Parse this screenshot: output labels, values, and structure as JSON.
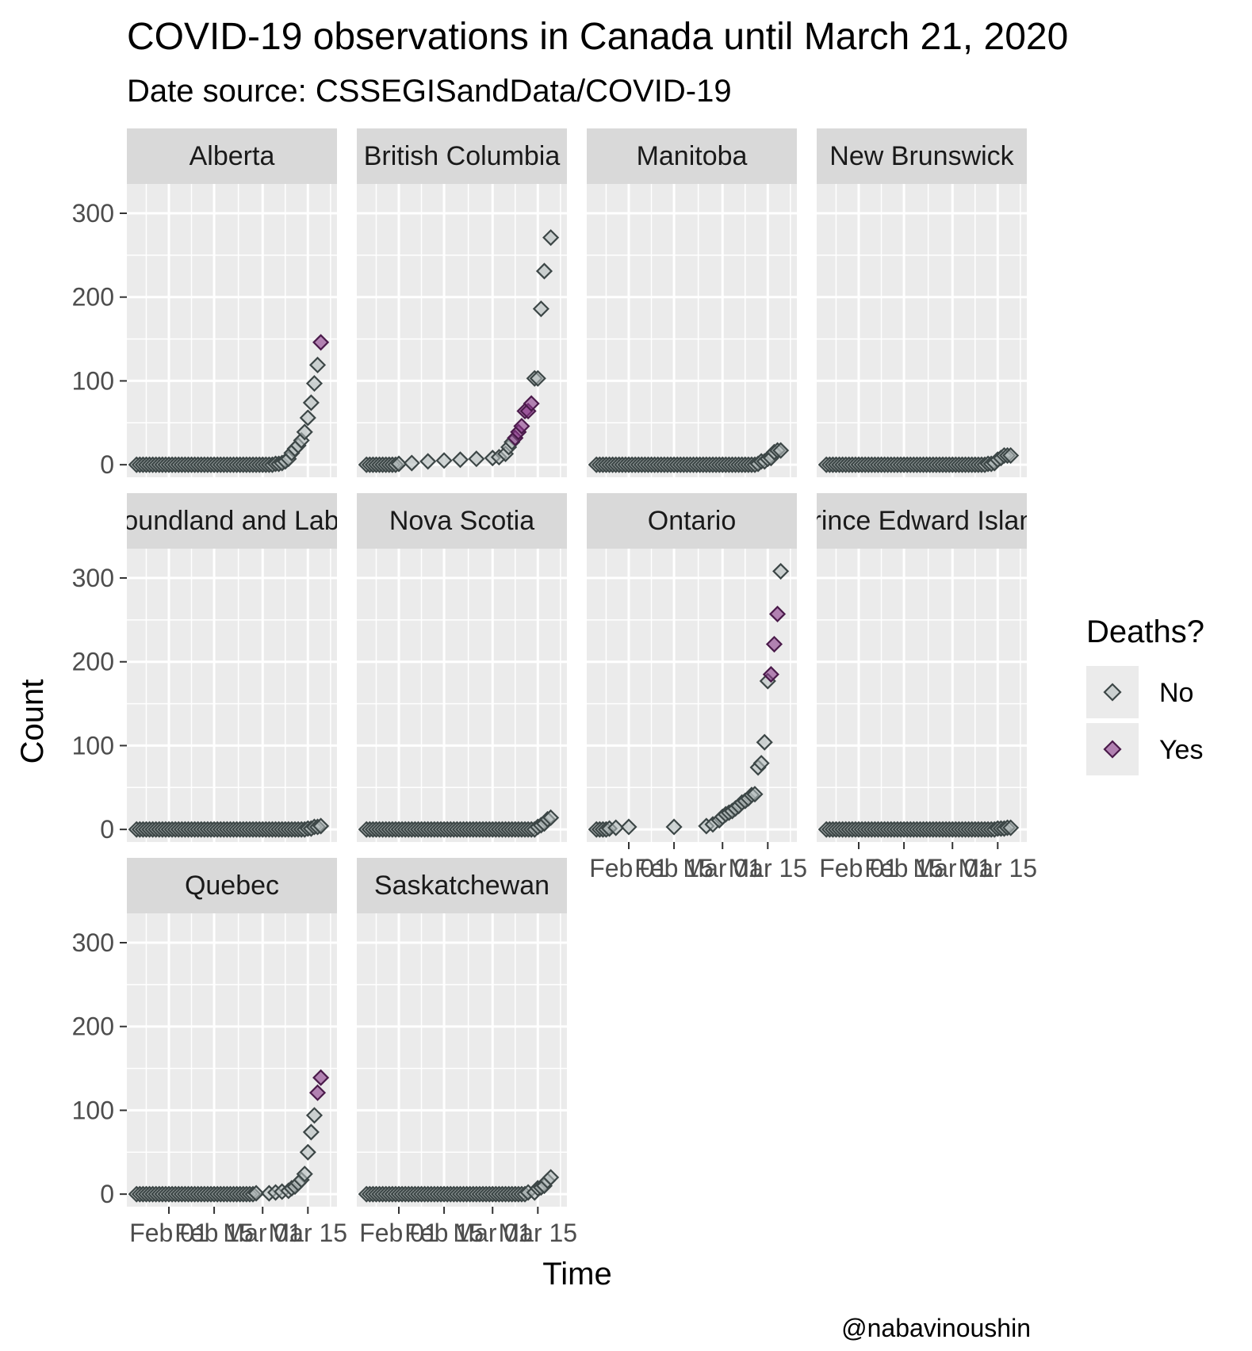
{
  "chart_data": {
    "type": "scatter",
    "title": "COVID-19 observations in Canada until March 21, 2020",
    "subtitle": "Date source: CSSEGISandData/COVID-19",
    "xlabel": "Time",
    "ylabel": "Count",
    "caption": "@nabavinoushin",
    "ylim": [
      -15,
      335
    ],
    "xlim": [
      "2020-01-19",
      "2020-03-24"
    ],
    "y_ticks": [
      0,
      100,
      200,
      300
    ],
    "x_ticks": [
      {
        "date": "2020-02-01",
        "label": "Feb 01"
      },
      {
        "date": "2020-02-15",
        "label": "Feb 15"
      },
      {
        "date": "2020-03-01",
        "label": "Mar 01"
      },
      {
        "date": "2020-03-15",
        "label": "Mar 15"
      }
    ],
    "grid": true,
    "legend": {
      "title": "Deaths?",
      "position": "right",
      "entries": [
        {
          "label": "No",
          "color": "#b4bcbc"
        },
        {
          "label": "Yes",
          "color": "#8b3a8b"
        }
      ]
    },
    "facets": [
      {
        "label": "Alberta",
        "points": [
          {
            "x": "2020-03-05",
            "y": 1,
            "death": "No"
          },
          {
            "x": "2020-03-06",
            "y": 1,
            "death": "No"
          },
          {
            "x": "2020-03-07",
            "y": 2,
            "death": "No"
          },
          {
            "x": "2020-03-08",
            "y": 4,
            "death": "No"
          },
          {
            "x": "2020-03-09",
            "y": 7,
            "death": "No"
          },
          {
            "x": "2020-03-10",
            "y": 14,
            "death": "No"
          },
          {
            "x": "2020-03-11",
            "y": 19,
            "death": "No"
          },
          {
            "x": "2020-03-12",
            "y": 23,
            "death": "No"
          },
          {
            "x": "2020-03-13",
            "y": 29,
            "death": "No"
          },
          {
            "x": "2020-03-14",
            "y": 39,
            "death": "No"
          },
          {
            "x": "2020-03-15",
            "y": 56,
            "death": "No"
          },
          {
            "x": "2020-03-16",
            "y": 74,
            "death": "No"
          },
          {
            "x": "2020-03-17",
            "y": 97,
            "death": "No"
          },
          {
            "x": "2020-03-18",
            "y": 119,
            "death": "No"
          },
          {
            "x": "2020-03-19",
            "y": 146,
            "death": "Yes"
          }
        ]
      },
      {
        "label": "British Columbia",
        "points": [
          {
            "x": "2020-02-01",
            "y": 1,
            "death": "No"
          },
          {
            "x": "2020-02-05",
            "y": 2,
            "death": "No"
          },
          {
            "x": "2020-02-10",
            "y": 4,
            "death": "No"
          },
          {
            "x": "2020-02-15",
            "y": 5,
            "death": "No"
          },
          {
            "x": "2020-02-20",
            "y": 6,
            "death": "No"
          },
          {
            "x": "2020-02-25",
            "y": 7,
            "death": "No"
          },
          {
            "x": "2020-03-01",
            "y": 8,
            "death": "No"
          },
          {
            "x": "2020-03-03",
            "y": 9,
            "death": "No"
          },
          {
            "x": "2020-03-05",
            "y": 13,
            "death": "No"
          },
          {
            "x": "2020-03-06",
            "y": 21,
            "death": "No"
          },
          {
            "x": "2020-03-07",
            "y": 27,
            "death": "No"
          },
          {
            "x": "2020-03-08",
            "y": 32,
            "death": "Yes"
          },
          {
            "x": "2020-03-09",
            "y": 39,
            "death": "Yes"
          },
          {
            "x": "2020-03-10",
            "y": 46,
            "death": "Yes"
          },
          {
            "x": "2020-03-11",
            "y": 64,
            "death": "Yes"
          },
          {
            "x": "2020-03-12",
            "y": 64,
            "death": "Yes"
          },
          {
            "x": "2020-03-13",
            "y": 73,
            "death": "Yes"
          },
          {
            "x": "2020-03-14",
            "y": 103,
            "death": "No"
          },
          {
            "x": "2020-03-15",
            "y": 103,
            "death": "No"
          },
          {
            "x": "2020-03-16",
            "y": 186,
            "death": "No"
          },
          {
            "x": "2020-03-17",
            "y": 231,
            "death": "No"
          },
          {
            "x": "2020-03-19",
            "y": 271,
            "death": "No"
          }
        ]
      },
      {
        "label": "Manitoba",
        "points": [
          {
            "x": "2020-03-12",
            "y": 1,
            "death": "No"
          },
          {
            "x": "2020-03-13",
            "y": 4,
            "death": "No"
          },
          {
            "x": "2020-03-14",
            "y": 4,
            "death": "No"
          },
          {
            "x": "2020-03-15",
            "y": 7,
            "death": "No"
          },
          {
            "x": "2020-03-16",
            "y": 8,
            "death": "No"
          },
          {
            "x": "2020-03-17",
            "y": 15,
            "death": "No"
          },
          {
            "x": "2020-03-18",
            "y": 17,
            "death": "No"
          },
          {
            "x": "2020-03-19",
            "y": 17,
            "death": "No"
          }
        ]
      },
      {
        "label": "New Brunswick",
        "points": [
          {
            "x": "2020-03-12",
            "y": 1,
            "death": "No"
          },
          {
            "x": "2020-03-13",
            "y": 1,
            "death": "No"
          },
          {
            "x": "2020-03-14",
            "y": 2,
            "death": "No"
          },
          {
            "x": "2020-03-15",
            "y": 6,
            "death": "No"
          },
          {
            "x": "2020-03-16",
            "y": 8,
            "death": "No"
          },
          {
            "x": "2020-03-17",
            "y": 11,
            "death": "No"
          },
          {
            "x": "2020-03-18",
            "y": 11,
            "death": "No"
          },
          {
            "x": "2020-03-19",
            "y": 11,
            "death": "No"
          }
        ]
      },
      {
        "label": "Newfoundland and Labrador",
        "points": [
          {
            "x": "2020-03-15",
            "y": 1,
            "death": "No"
          },
          {
            "x": "2020-03-16",
            "y": 1,
            "death": "No"
          },
          {
            "x": "2020-03-17",
            "y": 3,
            "death": "No"
          },
          {
            "x": "2020-03-18",
            "y": 3,
            "death": "No"
          },
          {
            "x": "2020-03-19",
            "y": 4,
            "death": "No"
          }
        ]
      },
      {
        "label": "Nova Scotia",
        "points": [
          {
            "x": "2020-03-15",
            "y": 3,
            "death": "No"
          },
          {
            "x": "2020-03-16",
            "y": 5,
            "death": "No"
          },
          {
            "x": "2020-03-17",
            "y": 7,
            "death": "No"
          },
          {
            "x": "2020-03-18",
            "y": 12,
            "death": "No"
          },
          {
            "x": "2020-03-19",
            "y": 14,
            "death": "No"
          }
        ]
      },
      {
        "label": "Ontario",
        "points": [
          {
            "x": "2020-01-26",
            "y": 1,
            "death": "No"
          },
          {
            "x": "2020-01-28",
            "y": 2,
            "death": "No"
          },
          {
            "x": "2020-02-01",
            "y": 3,
            "death": "No"
          },
          {
            "x": "2020-02-15",
            "y": 3,
            "death": "No"
          },
          {
            "x": "2020-02-25",
            "y": 4,
            "death": "No"
          },
          {
            "x": "2020-02-27",
            "y": 6,
            "death": "No"
          },
          {
            "x": "2020-02-29",
            "y": 11,
            "death": "No"
          },
          {
            "x": "2020-03-01",
            "y": 15,
            "death": "No"
          },
          {
            "x": "2020-03-02",
            "y": 18,
            "death": "No"
          },
          {
            "x": "2020-03-03",
            "y": 20,
            "death": "No"
          },
          {
            "x": "2020-03-04",
            "y": 22,
            "death": "No"
          },
          {
            "x": "2020-03-05",
            "y": 25,
            "death": "No"
          },
          {
            "x": "2020-03-06",
            "y": 28,
            "death": "No"
          },
          {
            "x": "2020-03-07",
            "y": 32,
            "death": "No"
          },
          {
            "x": "2020-03-08",
            "y": 34,
            "death": "No"
          },
          {
            "x": "2020-03-09",
            "y": 37,
            "death": "No"
          },
          {
            "x": "2020-03-10",
            "y": 41,
            "death": "No"
          },
          {
            "x": "2020-03-11",
            "y": 42,
            "death": "No"
          },
          {
            "x": "2020-03-12",
            "y": 74,
            "death": "No"
          },
          {
            "x": "2020-03-13",
            "y": 79,
            "death": "No"
          },
          {
            "x": "2020-03-14",
            "y": 104,
            "death": "No"
          },
          {
            "x": "2020-03-15",
            "y": 177,
            "death": "No"
          },
          {
            "x": "2020-03-16",
            "y": 185,
            "death": "Yes"
          },
          {
            "x": "2020-03-17",
            "y": 221,
            "death": "Yes"
          },
          {
            "x": "2020-03-18",
            "y": 257,
            "death": "Yes"
          },
          {
            "x": "2020-03-19",
            "y": 308,
            "death": "No"
          }
        ]
      },
      {
        "label": "Prince Edward Island",
        "points": [
          {
            "x": "2020-03-15",
            "y": 1,
            "death": "No"
          },
          {
            "x": "2020-03-16",
            "y": 1,
            "death": "No"
          },
          {
            "x": "2020-03-17",
            "y": 1,
            "death": "No"
          },
          {
            "x": "2020-03-18",
            "y": 2,
            "death": "No"
          },
          {
            "x": "2020-03-19",
            "y": 2,
            "death": "No"
          }
        ]
      },
      {
        "label": "Quebec",
        "points": [
          {
            "x": "2020-02-28",
            "y": 1,
            "death": "No"
          },
          {
            "x": "2020-03-03",
            "y": 1,
            "death": "No"
          },
          {
            "x": "2020-03-05",
            "y": 2,
            "death": "No"
          },
          {
            "x": "2020-03-07",
            "y": 3,
            "death": "No"
          },
          {
            "x": "2020-03-09",
            "y": 4,
            "death": "No"
          },
          {
            "x": "2020-03-10",
            "y": 7,
            "death": "No"
          },
          {
            "x": "2020-03-11",
            "y": 9,
            "death": "No"
          },
          {
            "x": "2020-03-12",
            "y": 13,
            "death": "No"
          },
          {
            "x": "2020-03-13",
            "y": 17,
            "death": "No"
          },
          {
            "x": "2020-03-14",
            "y": 24,
            "death": "No"
          },
          {
            "x": "2020-03-15",
            "y": 50,
            "death": "No"
          },
          {
            "x": "2020-03-16",
            "y": 74,
            "death": "No"
          },
          {
            "x": "2020-03-17",
            "y": 94,
            "death": "No"
          },
          {
            "x": "2020-03-18",
            "y": 121,
            "death": "Yes"
          },
          {
            "x": "2020-03-19",
            "y": 139,
            "death": "Yes"
          }
        ]
      },
      {
        "label": "Saskatchewan",
        "points": [
          {
            "x": "2020-03-12",
            "y": 2,
            "death": "No"
          },
          {
            "x": "2020-03-14",
            "y": 2,
            "death": "No"
          },
          {
            "x": "2020-03-15",
            "y": 7,
            "death": "No"
          },
          {
            "x": "2020-03-16",
            "y": 8,
            "death": "No"
          },
          {
            "x": "2020-03-17",
            "y": 10,
            "death": "No"
          },
          {
            "x": "2020-03-18",
            "y": 16,
            "death": "No"
          },
          {
            "x": "2020-03-19",
            "y": 20,
            "death": "No"
          }
        ]
      }
    ]
  }
}
